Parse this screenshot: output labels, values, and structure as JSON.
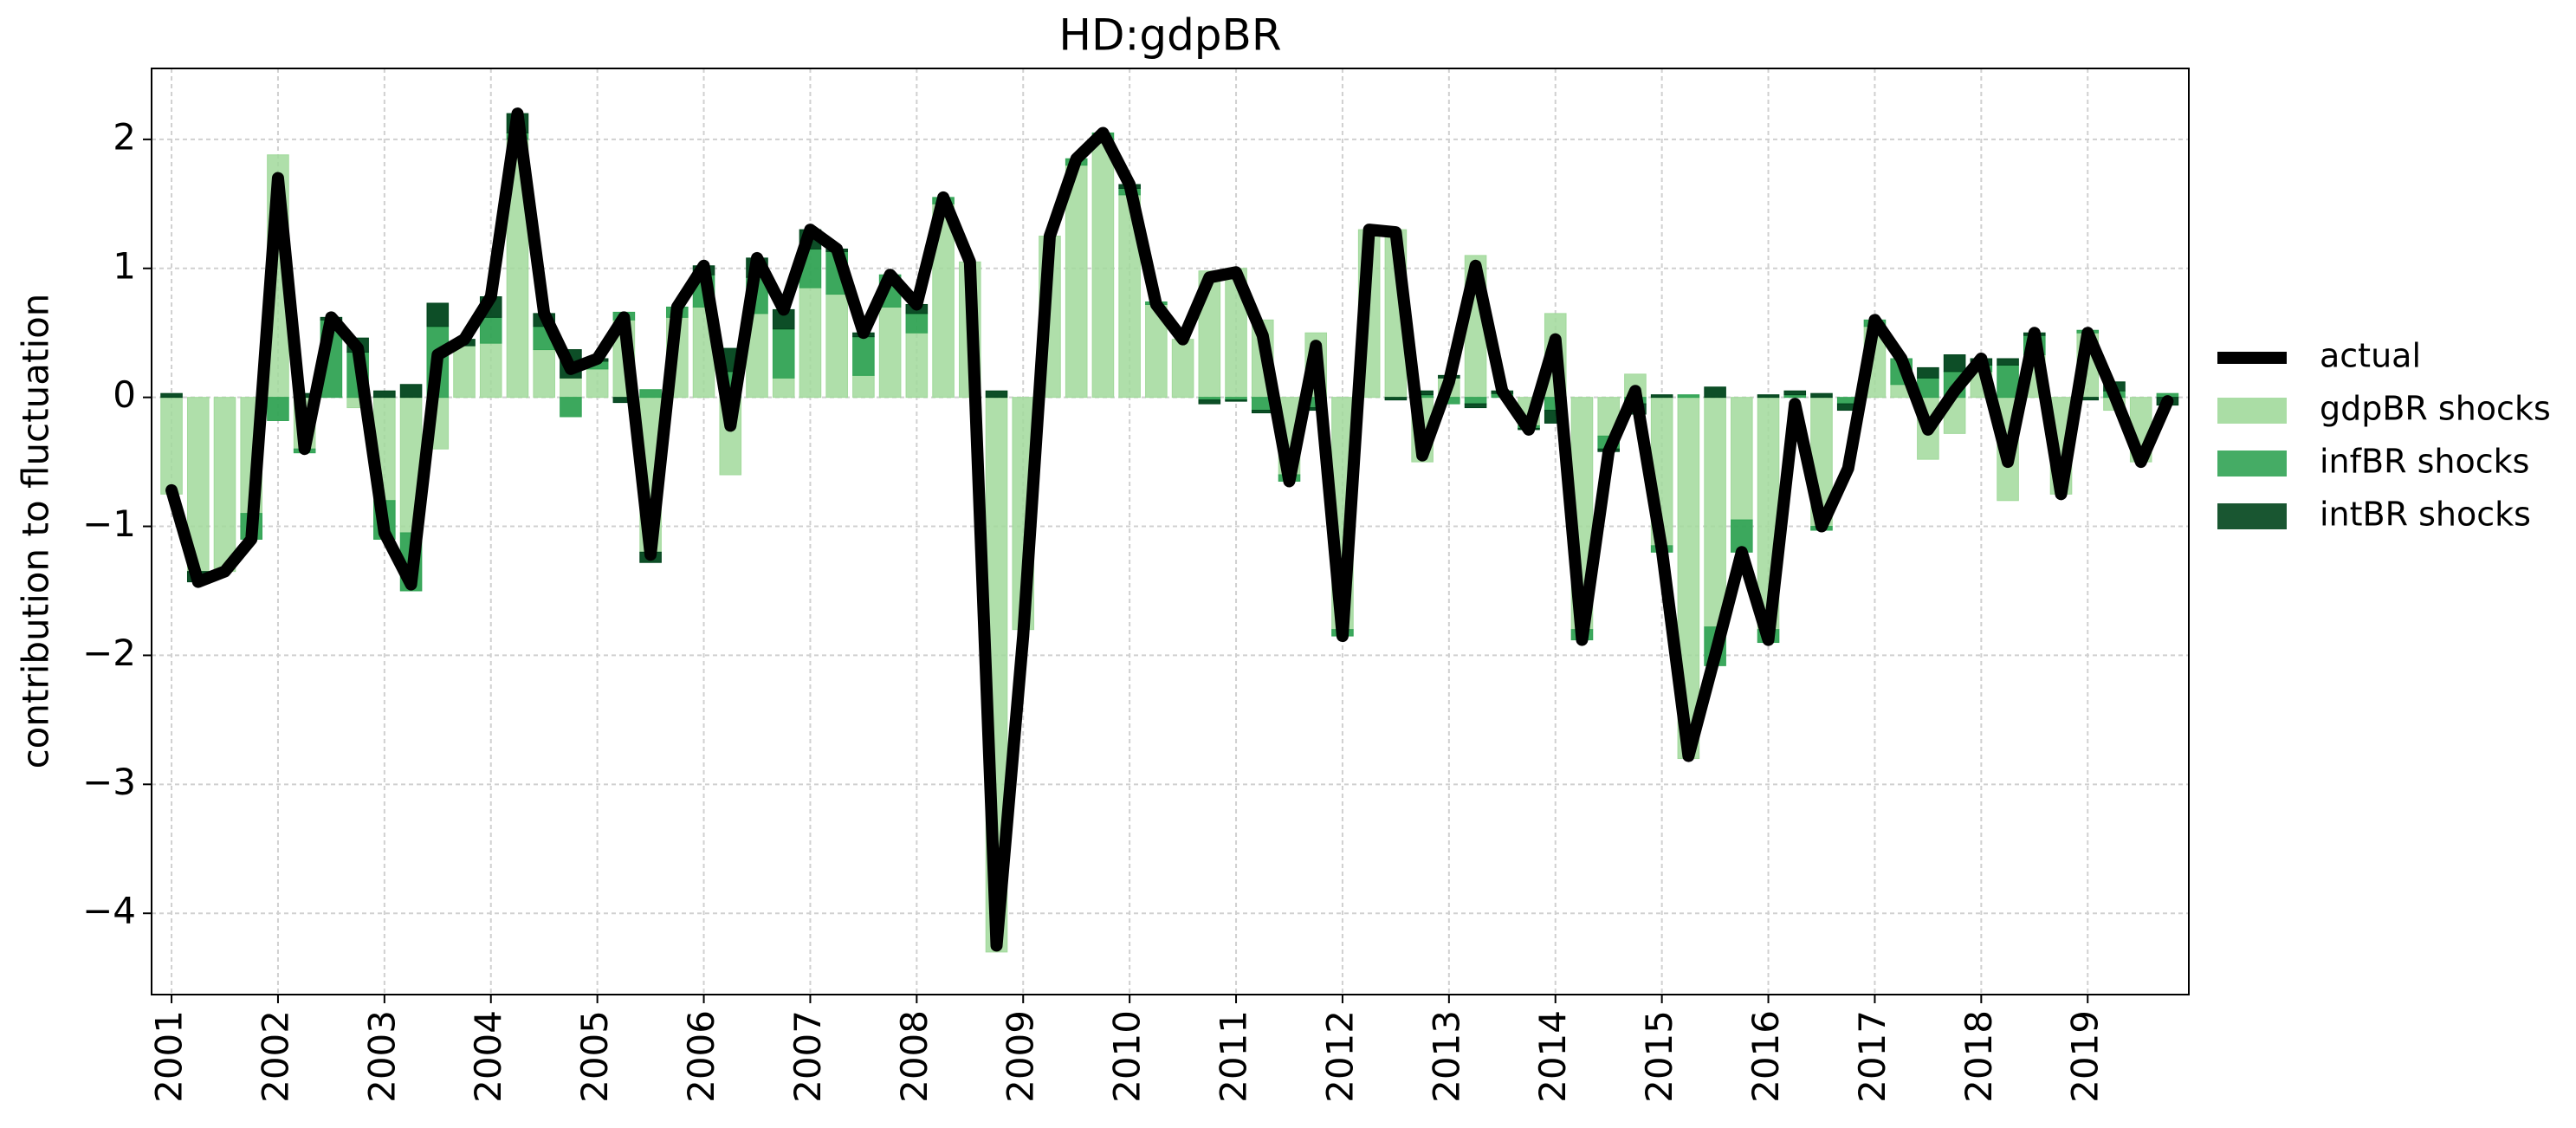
{
  "chart_data": {
    "type": "bar",
    "title": "HD:gdpBR",
    "y_label": "contribution to fluctuation",
    "categories": [
      "2001",
      null,
      null,
      null,
      "2002",
      null,
      null,
      null,
      "2003",
      null,
      null,
      null,
      "2004",
      null,
      null,
      null,
      "2005",
      null,
      null,
      null,
      "2006",
      null,
      null,
      null,
      "2007",
      null,
      null,
      null,
      "2008",
      null,
      null,
      null,
      "2009",
      null,
      null,
      null,
      "2010",
      null,
      null,
      null,
      "2011",
      null,
      null,
      null,
      "2012",
      null,
      null,
      null,
      "2013",
      null,
      null,
      null,
      "2014",
      null,
      null,
      null,
      "2015",
      null,
      null,
      null,
      "2016",
      null,
      null,
      null,
      "2017",
      null,
      null,
      null,
      "2018",
      null,
      null,
      null,
      "2019",
      null,
      null,
      null
    ],
    "series": [
      {
        "name": "actual",
        "type": "line",
        "color": "#000000",
        "values": [
          -0.72,
          -1.43,
          -1.35,
          -1.1,
          1.7,
          -0.4,
          0.62,
          0.38,
          -1.05,
          -1.45,
          0.33,
          0.45,
          0.78,
          2.2,
          0.65,
          0.22,
          0.3,
          0.62,
          -1.22,
          0.7,
          1.02,
          -0.22,
          1.08,
          0.68,
          1.3,
          1.15,
          0.5,
          0.95,
          0.72,
          1.55,
          1.05,
          -4.25,
          -1.85,
          1.25,
          1.85,
          2.05,
          1.65,
          0.72,
          0.45,
          0.93,
          0.97,
          0.48,
          -0.65,
          0.4,
          -1.85,
          1.3,
          1.28,
          -0.45,
          0.12,
          1.02,
          0.05,
          -0.25,
          0.45,
          -1.88,
          -0.42,
          0.05,
          -1.18,
          -2.78,
          -2.0,
          -1.2,
          -1.88,
          -0.05,
          -1.0,
          -0.55,
          0.6,
          0.3,
          -0.25,
          0.05,
          0.3,
          -0.5,
          0.5,
          -0.75,
          0.5,
          0.02,
          -0.5,
          -0.03
        ]
      },
      {
        "name": "gdpBR shocks",
        "color": "#a1d99b",
        "values": [
          -0.75,
          -1.35,
          -1.35,
          -0.9,
          1.88,
          -0.4,
          0.0,
          -0.08,
          -0.8,
          -1.05,
          -0.4,
          0.4,
          0.42,
          2.0,
          0.37,
          0.15,
          0.22,
          0.6,
          -1.2,
          0.62,
          0.7,
          -0.6,
          0.65,
          0.15,
          0.85,
          0.8,
          0.17,
          0.7,
          0.5,
          1.5,
          1.05,
          -4.3,
          -1.8,
          1.25,
          1.8,
          2.0,
          1.57,
          0.72,
          0.45,
          0.98,
          1.0,
          0.6,
          -0.6,
          0.5,
          -1.8,
          1.3,
          1.3,
          -0.5,
          0.15,
          1.1,
          0.0,
          -0.22,
          0.65,
          -1.8,
          -0.3,
          0.18,
          -1.15,
          -2.8,
          -1.78,
          -0.95,
          -1.8,
          0.0,
          -1.0,
          0.0,
          0.55,
          0.1,
          -0.48,
          -0.28,
          0.2,
          -0.8,
          0.33,
          -0.75,
          0.5,
          -0.1,
          -0.5,
          0.0
        ]
      },
      {
        "name": "infBR shocks",
        "color": "#31a354",
        "values": [
          0,
          0,
          0,
          -0.2,
          -0.18,
          -0.03,
          0.6,
          0.35,
          -0.3,
          -0.45,
          0.55,
          0.0,
          0.2,
          0.05,
          0.18,
          -0.15,
          0.06,
          0.06,
          0.06,
          0.08,
          0.25,
          0.2,
          0.28,
          0.38,
          0.3,
          0.33,
          0.3,
          0.25,
          0.15,
          0.05,
          0.0,
          0.0,
          0.0,
          0.0,
          0.05,
          0.05,
          0.05,
          0.02,
          0.0,
          -0.02,
          -0.02,
          -0.1,
          -0.05,
          -0.08,
          -0.05,
          0.0,
          0.0,
          0.02,
          -0.05,
          -0.05,
          0.03,
          -0.02,
          -0.1,
          -0.08,
          -0.1,
          -0.05,
          -0.05,
          0.02,
          -0.3,
          -0.25,
          -0.1,
          0.02,
          -0.03,
          -0.05,
          0.05,
          0.2,
          0.15,
          0.2,
          0.05,
          0.25,
          0.15,
          0.0,
          0.02,
          0.05,
          0.0,
          0.03
        ]
      },
      {
        "name": "intBR shocks",
        "color": "#00441b",
        "values": [
          0.03,
          -0.08,
          0.0,
          0.0,
          0.0,
          0.03,
          0.02,
          0.11,
          0.05,
          0.1,
          0.18,
          0.05,
          0.16,
          0.15,
          0.1,
          0.22,
          0.02,
          -0.04,
          -0.08,
          0.0,
          0.07,
          0.18,
          0.15,
          0.15,
          0.15,
          0.02,
          0.03,
          0.0,
          0.07,
          0.0,
          0.0,
          0.05,
          0.0,
          0.0,
          0.0,
          0.0,
          0.03,
          0.0,
          0.0,
          -0.03,
          -0.01,
          -0.02,
          0.0,
          -0.02,
          0.0,
          0.0,
          -0.02,
          0.03,
          0.02,
          -0.03,
          0.02,
          -0.01,
          -0.1,
          0.0,
          -0.02,
          -0.08,
          0.02,
          0.0,
          0.08,
          0.0,
          0.02,
          0.03,
          0.03,
          -0.05,
          0.0,
          0.0,
          0.08,
          0.13,
          0.05,
          0.05,
          0.02,
          0.0,
          -0.02,
          0.07,
          0.0,
          -0.06
        ]
      }
    ],
    "ylim": [
      -4.63,
      2.55
    ],
    "yticks": [
      {
        "value": -4,
        "label": "−4"
      },
      {
        "value": -3,
        "label": "−3"
      },
      {
        "value": -2,
        "label": "−2"
      },
      {
        "value": -1,
        "label": "−1"
      },
      0,
      1,
      2
    ],
    "grid": true,
    "legend": "right"
  }
}
